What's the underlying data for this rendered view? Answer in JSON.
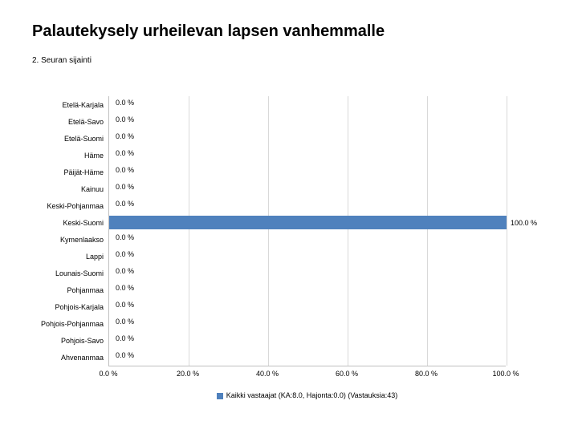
{
  "title": "Palautekysely urheilevan lapsen vanhemmalle",
  "subtitle": "2. Seuran sijainti",
  "chart": {
    "type": "bar-horizontal",
    "x_max": 100.0,
    "bar_color": "#4f81bd",
    "grid_color": "#d9d9d9",
    "axis_color": "#bfbfbf",
    "label_fontsize": 9,
    "categories": [
      {
        "name": "Etelä-Karjala",
        "value": 0.0,
        "label": "0.0 %"
      },
      {
        "name": "Etelä-Savo",
        "value": 0.0,
        "label": "0.0 %"
      },
      {
        "name": "Etelä-Suomi",
        "value": 0.0,
        "label": "0.0 %"
      },
      {
        "name": "Häme",
        "value": 0.0,
        "label": "0.0 %"
      },
      {
        "name": "Päijät-Häme",
        "value": 0.0,
        "label": "0.0 %"
      },
      {
        "name": "Kainuu",
        "value": 0.0,
        "label": "0.0 %"
      },
      {
        "name": "Keski-Pohjanmaa",
        "value": 0.0,
        "label": "0.0 %"
      },
      {
        "name": "Keski-Suomi",
        "value": 100.0,
        "label": "100.0 %"
      },
      {
        "name": "Kymenlaakso",
        "value": 0.0,
        "label": "0.0 %"
      },
      {
        "name": "Lappi",
        "value": 0.0,
        "label": "0.0 %"
      },
      {
        "name": "Lounais-Suomi",
        "value": 0.0,
        "label": "0.0 %"
      },
      {
        "name": "Pohjanmaa",
        "value": 0.0,
        "label": "0.0 %"
      },
      {
        "name": "Pohjois-Karjala",
        "value": 0.0,
        "label": "0.0 %"
      },
      {
        "name": "Pohjois-Pohjanmaa",
        "value": 0.0,
        "label": "0.0 %"
      },
      {
        "name": "Pohjois-Savo",
        "value": 0.0,
        "label": "0.0 %"
      },
      {
        "name": "Ahvenanmaa",
        "value": 0.0,
        "label": "0.0 %"
      }
    ],
    "ticks": [
      {
        "value": 0.0,
        "label": "0.0 %"
      },
      {
        "value": 20.0,
        "label": "20.0 %"
      },
      {
        "value": 40.0,
        "label": "40.0 %"
      },
      {
        "value": 60.0,
        "label": "60.0 %"
      },
      {
        "value": 80.0,
        "label": "80.0 %"
      },
      {
        "value": 100.0,
        "label": "100.0 %"
      }
    ],
    "legend": {
      "color": "#4f81bd",
      "text": "Kaikki vastaajat (KA:8.0, Hajonta:0.0) (Vastauksia:43)"
    }
  }
}
